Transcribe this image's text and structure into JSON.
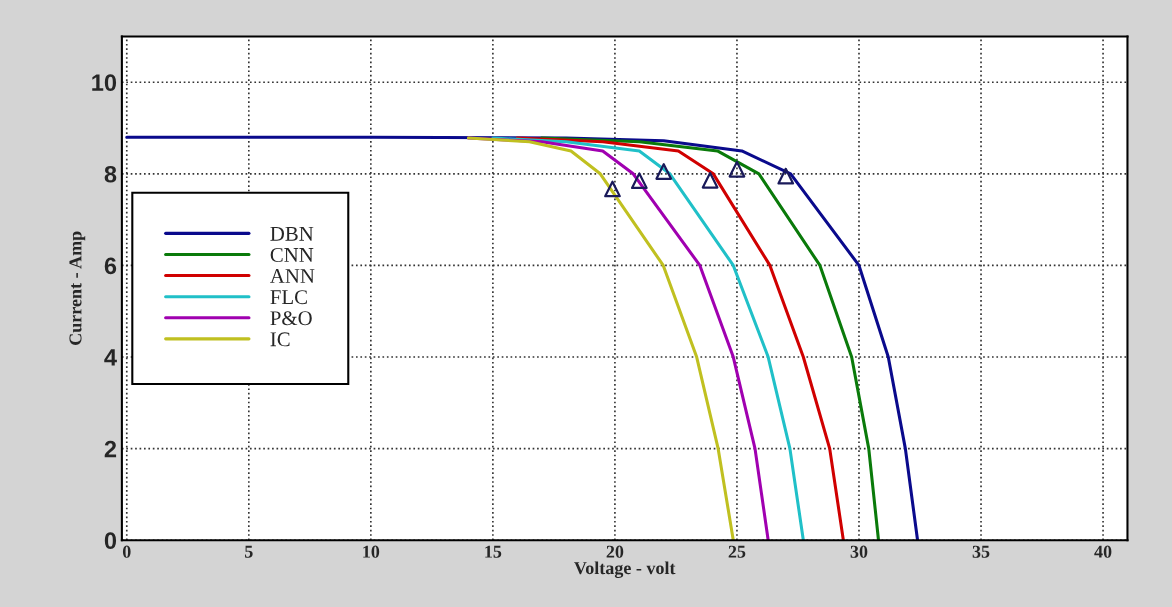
{
  "chart_data": {
    "type": "line",
    "xlabel": "Voltage - volt",
    "ylabel": "Current - Amp",
    "xlim": [
      -0.2,
      41
    ],
    "ylim": [
      0,
      11
    ],
    "xticks": [
      0,
      5,
      10,
      15,
      20,
      25,
      30,
      35,
      40
    ],
    "yticks": [
      0,
      2,
      4,
      6,
      8,
      10
    ],
    "grid": true,
    "legend": "center left",
    "line_style": "solid",
    "series": [
      {
        "name": "DBN",
        "color": "#0a0a8c",
        "marker": "none",
        "x": [
          0,
          10,
          18,
          22,
          25.2,
          27.2,
          30.0,
          31.2,
          31.9,
          32.4
        ],
        "values": [
          8.8,
          8.8,
          8.78,
          8.72,
          8.5,
          8.0,
          6.0,
          4.0,
          2.0,
          0
        ]
      },
      {
        "name": "CNN",
        "color": "#0a7a0a",
        "marker": "none",
        "x": [
          17,
          21,
          24.2,
          25.9,
          28.4,
          29.7,
          30.4,
          30.8
        ],
        "values": [
          8.78,
          8.7,
          8.5,
          8.0,
          6.0,
          4.0,
          2.0,
          0
        ]
      },
      {
        "name": "ANN",
        "color": "#d00000",
        "marker": "none",
        "x": [
          16,
          19.5,
          22.6,
          24.03,
          26.35,
          27.72,
          28.8,
          29.36
        ],
        "values": [
          8.78,
          8.7,
          8.5,
          8.0,
          6.0,
          4.0,
          2.0,
          0
        ]
      },
      {
        "name": "FLC",
        "color": "#20c0c8",
        "marker": "none",
        "x": [
          15,
          18,
          21.0,
          22.25,
          24.85,
          26.28,
          27.17,
          27.72
        ],
        "values": [
          8.78,
          8.7,
          8.5,
          8.0,
          6.0,
          4.0,
          2.0,
          0
        ]
      },
      {
        "name": "P&O",
        "color": "#a000b0",
        "marker": "none",
        "x": [
          14,
          17,
          19.5,
          20.75,
          23.48,
          24.85,
          25.74,
          26.28
        ],
        "values": [
          8.78,
          8.7,
          8.5,
          8.0,
          6.0,
          4.0,
          2.0,
          0
        ]
      },
      {
        "name": "IC",
        "color": "#c0c020",
        "marker": "none",
        "x": [
          14,
          16.5,
          18.2,
          19.4,
          21.98,
          23.35,
          24.23,
          24.85
        ],
        "values": [
          8.78,
          8.7,
          8.5,
          8.0,
          6.0,
          4.0,
          2.0,
          0
        ]
      },
      {
        "type": "scatter",
        "color": "#1a1a5a",
        "marker": "triangle",
        "x": [
          19.9,
          21.0,
          22.0,
          23.9,
          25.0,
          27.0
        ],
        "values": [
          7.67,
          7.85,
          8.05,
          7.86,
          8.1,
          7.95
        ]
      }
    ]
  }
}
